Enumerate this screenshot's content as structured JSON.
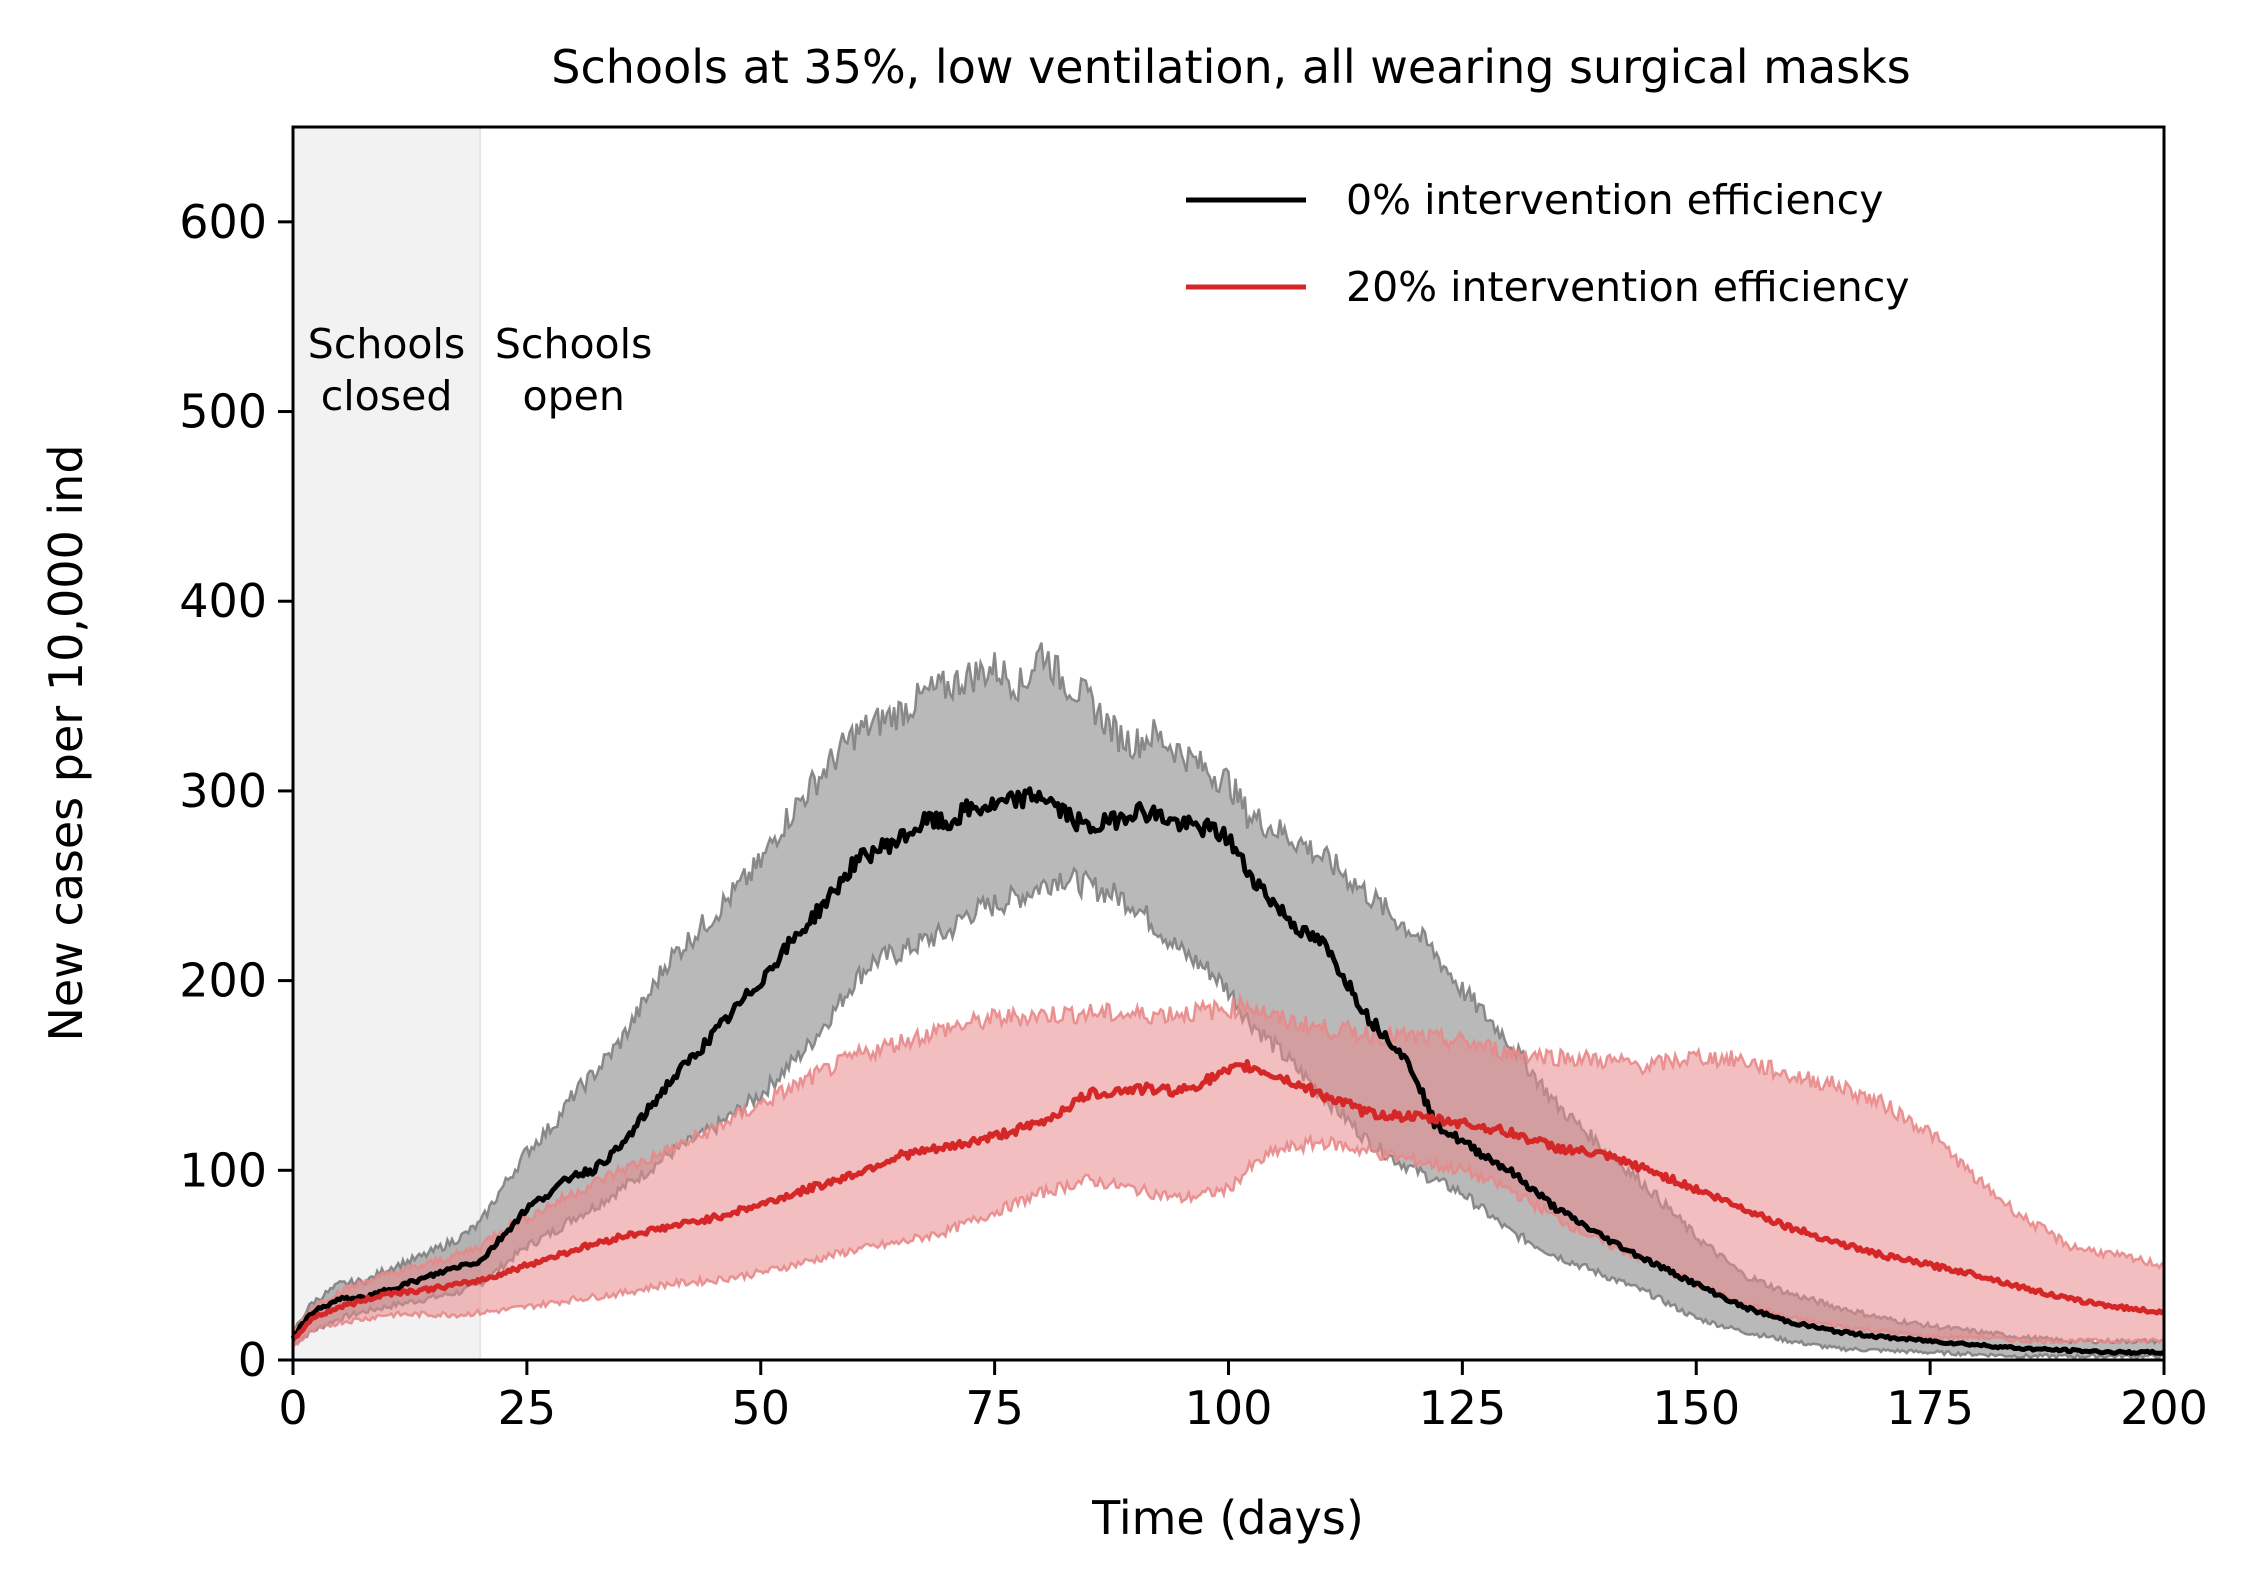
{
  "chart_data": {
    "type": "line",
    "title": "Schools at 35%, low ventilation, all wearing surgical masks",
    "xlabel": "Time (days)",
    "ylabel": "New cases per 10,000 ind",
    "xlim": [
      0,
      200
    ],
    "ylim": [
      0,
      650
    ],
    "xticks": [
      0,
      25,
      50,
      75,
      100,
      125,
      150,
      175,
      200
    ],
    "yticks": [
      0,
      100,
      200,
      300,
      400,
      500,
      600
    ],
    "grid": false,
    "legend_position": "top-right",
    "shaded_period": {
      "x_start": 0,
      "x_end": 20,
      "color": "#f2f2f2"
    },
    "annotations": [
      {
        "lines": [
          "Schools",
          "closed"
        ],
        "x": 10,
        "y": 535
      },
      {
        "lines": [
          "Schools",
          "open"
        ],
        "x": 30,
        "y": 535
      }
    ],
    "series": [
      {
        "name": "0% intervention efficiency",
        "color": "#000000",
        "band_color": "#808080",
        "x": [
          0,
          2,
          5,
          8,
          10,
          14,
          18,
          20,
          22,
          25,
          28,
          30,
          32,
          35,
          38,
          40,
          45,
          50,
          52,
          55,
          58,
          60,
          62,
          65,
          68,
          70,
          72,
          75,
          78,
          80,
          82,
          85,
          88,
          90,
          92,
          95,
          98,
          100,
          102,
          105,
          108,
          110,
          112,
          115,
          118,
          120,
          122,
          125,
          130,
          135,
          140,
          145,
          150,
          155,
          160,
          165,
          170,
          175,
          180,
          185,
          190,
          195,
          200
        ],
        "y": [
          12,
          25,
          32,
          33,
          37,
          43,
          50,
          52,
          63,
          80,
          90,
          98,
          100,
          112,
          132,
          145,
          172,
          200,
          213,
          230,
          248,
          262,
          268,
          275,
          285,
          282,
          290,
          292,
          296,
          298,
          290,
          280,
          285,
          290,
          288,
          282,
          280,
          275,
          258,
          240,
          225,
          220,
          205,
          180,
          165,
          150,
          125,
          115,
          100,
          80,
          65,
          52,
          40,
          28,
          20,
          15,
          12,
          10,
          8,
          6,
          5,
          4,
          4
        ],
        "lower": [
          8,
          15,
          22,
          26,
          28,
          32,
          36,
          40,
          48,
          60,
          68,
          75,
          80,
          90,
          100,
          108,
          122,
          140,
          150,
          165,
          185,
          200,
          210,
          215,
          222,
          225,
          235,
          240,
          245,
          250,
          255,
          250,
          245,
          240,
          230,
          215,
          205,
          195,
          180,
          165,
          150,
          140,
          130,
          115,
          105,
          100,
          95,
          88,
          68,
          55,
          45,
          35,
          22,
          15,
          10,
          6,
          5,
          4,
          3,
          2,
          2,
          2,
          2
        ],
        "upper": [
          15,
          30,
          40,
          42,
          48,
          55,
          65,
          72,
          88,
          110,
          125,
          140,
          150,
          168,
          192,
          210,
          235,
          262,
          280,
          300,
          318,
          330,
          335,
          342,
          352,
          355,
          360,
          365,
          355,
          375,
          360,
          348,
          330,
          325,
          330,
          320,
          310,
          305,
          288,
          280,
          272,
          265,
          258,
          245,
          232,
          225,
          215,
          195,
          168,
          135,
          112,
          90,
          65,
          45,
          35,
          28,
          22,
          18,
          15,
          12,
          10,
          10,
          10
        ]
      },
      {
        "name": "20% intervention efficiency",
        "color": "#d62728",
        "band_color": "#e8888a",
        "x": [
          0,
          2,
          5,
          8,
          10,
          14,
          18,
          20,
          22,
          25,
          30,
          35,
          40,
          45,
          50,
          55,
          60,
          65,
          70,
          75,
          80,
          85,
          90,
          95,
          100,
          102,
          105,
          110,
          115,
          120,
          125,
          130,
          135,
          140,
          145,
          150,
          155,
          160,
          165,
          170,
          175,
          180,
          185,
          190,
          195,
          200
        ],
        "y": [
          10,
          22,
          28,
          32,
          35,
          37,
          40,
          42,
          45,
          50,
          58,
          65,
          70,
          75,
          82,
          90,
          98,
          108,
          112,
          118,
          125,
          140,
          143,
          142,
          152,
          155,
          150,
          140,
          130,
          128,
          125,
          120,
          112,
          108,
          100,
          90,
          80,
          70,
          62,
          55,
          50,
          45,
          38,
          32,
          28,
          25
        ],
        "lower": [
          7,
          15,
          20,
          22,
          24,
          24,
          24,
          25,
          26,
          28,
          32,
          35,
          40,
          42,
          46,
          52,
          58,
          62,
          68,
          78,
          88,
          95,
          90,
          85,
          90,
          100,
          110,
          115,
          110,
          105,
          100,
          90,
          75,
          62,
          52,
          40,
          30,
          22,
          18,
          15,
          12,
          12,
          10,
          10,
          10,
          10
        ],
        "upper": [
          14,
          28,
          36,
          42,
          45,
          50,
          56,
          60,
          68,
          75,
          88,
          100,
          110,
          122,
          135,
          148,
          160,
          168,
          175,
          180,
          182,
          183,
          182,
          183,
          185,
          188,
          180,
          175,
          172,
          170,
          168,
          162,
          160,
          158,
          155,
          160,
          158,
          150,
          145,
          135,
          120,
          95,
          75,
          60,
          55,
          50
        ]
      }
    ]
  }
}
